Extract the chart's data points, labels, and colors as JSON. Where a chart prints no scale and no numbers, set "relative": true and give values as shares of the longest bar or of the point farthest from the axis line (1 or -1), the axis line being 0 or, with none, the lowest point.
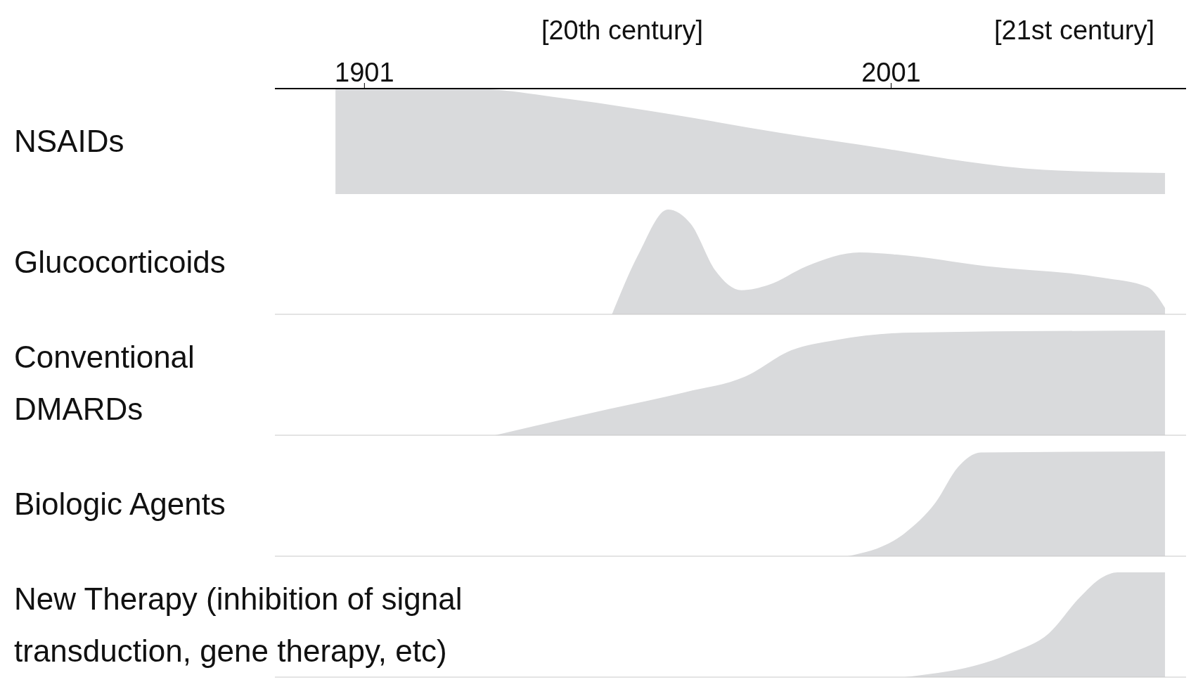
{
  "chart_data": [
    {
      "type": "area",
      "relative": true,
      "xlim": [
        1884,
        2057
      ],
      "xticks": [
        1901,
        2001
      ],
      "annotations": [
        "[20th century]",
        "[21st century]"
      ],
      "tick_labels": "x",
      "x": [
        1895.5,
        1921,
        1940,
        1960,
        1980,
        2000,
        2015,
        2030,
        2053
      ],
      "series": [
        {
          "name": "NSAIDs",
          "color": "#d9dadc",
          "values": [
            1,
            1,
            0.9,
            0.75,
            0.58,
            0.43,
            0.31,
            0.23,
            0.2
          ]
        }
      ]
    },
    {
      "type": "area",
      "relative": true,
      "xlim": [
        1884,
        2057
      ],
      "tick_labels": false,
      "x": [
        1948,
        1953,
        1958.6,
        1963,
        1967.6,
        1972.6,
        1977.7,
        1985,
        1995,
        2002,
        2019,
        2041,
        2049.7,
        2053
      ],
      "series": [
        {
          "name": "Glucocorticoids",
          "color": "#d9dadc",
          "values": [
            0,
            0.57,
            1,
            0.86,
            0.42,
            0.23,
            0.28,
            0.46,
            0.59,
            0.57,
            0.46,
            0.35,
            0.26,
            0.06
          ]
        }
      ]
    },
    {
      "type": "area",
      "relative": true,
      "xlim": [
        1884,
        2057
      ],
      "tick_labels": false,
      "x": [
        1925.8,
        1947.4,
        1961.8,
        1973.3,
        1982,
        1990.6,
        2005,
        2053
      ],
      "series": [
        {
          "name": "Conventional DMARDs",
          "color": "#d9dadc",
          "values": [
            0,
            0.25,
            0.41,
            0.56,
            0.81,
            0.91,
            0.98,
            1
          ]
        }
      ]
    },
    {
      "type": "area",
      "relative": true,
      "xlim": [
        1884,
        2057
      ],
      "tick_labels": false,
      "x": [
        1992.8,
        2003.6,
        2009.4,
        2013.7,
        2018,
        2053
      ],
      "series": [
        {
          "name": "Biologic Agents",
          "color": "#d9dadc",
          "values": [
            0,
            0.22,
            0.51,
            0.85,
            0.99,
            1
          ]
        }
      ]
    },
    {
      "type": "area",
      "relative": true,
      "xlim": [
        1884,
        2057
      ],
      "tick_labels": false,
      "x": [
        2003.6,
        2023.8,
        2031,
        2036.8,
        2041,
        2044,
        2053
      ],
      "series": [
        {
          "name": "New Therapy (inhibition of signal transduction, gene therapy, etc)",
          "color": "#d9dadc",
          "values": [
            0,
            0.23,
            0.42,
            0.76,
            0.95,
            1,
            1
          ]
        }
      ]
    }
  ]
}
